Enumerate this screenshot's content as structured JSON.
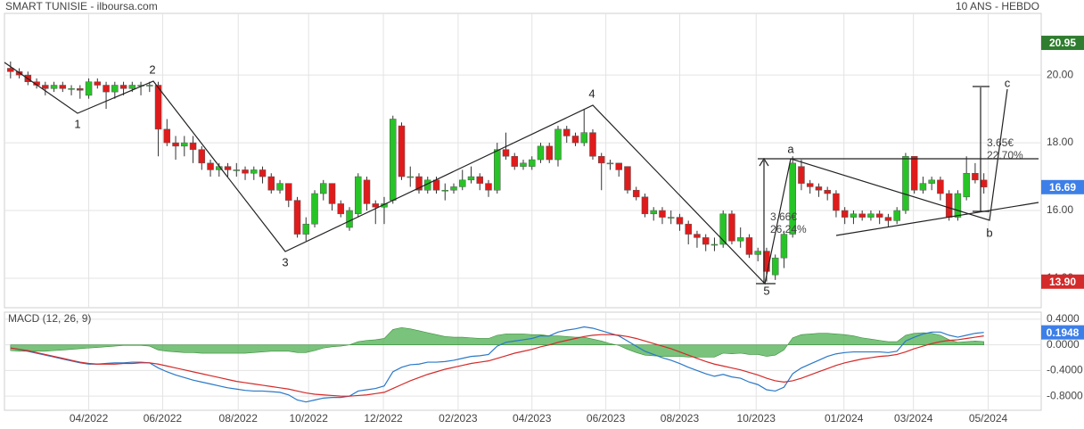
{
  "header": {
    "title": "SMART TUNISIE - ilboursa.com",
    "period": "10 ANS - HEBDO"
  },
  "annotations": {
    "waves": [
      "1",
      "2",
      "3",
      "4",
      "5",
      "a",
      "b",
      "c"
    ],
    "measures": [
      "3.66€",
      "26.24%",
      "3.65€",
      "22.70%"
    ]
  },
  "chart_data": [
    {
      "type": "candlestick",
      "candles": [
        [
          20.2,
          20.4,
          19.9,
          20.1
        ],
        [
          20.1,
          20.2,
          19.9,
          20.0
        ],
        [
          20.0,
          20.1,
          19.7,
          19.8
        ],
        [
          19.8,
          19.9,
          19.6,
          19.7
        ],
        [
          19.7,
          19.8,
          19.4,
          19.6
        ],
        [
          19.6,
          19.8,
          19.5,
          19.7
        ],
        [
          19.7,
          19.8,
          19.5,
          19.6
        ],
        [
          19.6,
          19.7,
          19.4,
          19.6
        ],
        [
          19.6,
          19.7,
          19.3,
          19.55
        ],
        [
          19.4,
          19.9,
          19.3,
          19.8
        ],
        [
          19.8,
          19.9,
          19.6,
          19.7
        ],
        [
          19.7,
          19.8,
          19.0,
          19.5
        ],
        [
          19.5,
          19.8,
          19.3,
          19.7
        ],
        [
          19.7,
          19.8,
          19.4,
          19.6
        ],
        [
          19.6,
          19.8,
          19.5,
          19.7
        ],
        [
          19.7,
          19.8,
          19.4,
          19.7
        ],
        [
          19.7,
          19.8,
          19.5,
          19.7
        ],
        [
          19.7,
          19.8,
          17.6,
          18.4
        ],
        [
          18.4,
          18.7,
          17.9,
          18.0
        ],
        [
          18.0,
          18.2,
          17.5,
          17.9
        ],
        [
          17.9,
          18.2,
          17.6,
          18.0
        ],
        [
          18.0,
          18.2,
          17.4,
          17.8
        ],
        [
          17.8,
          17.9,
          17.2,
          17.4
        ],
        [
          17.4,
          17.5,
          17.0,
          17.2
        ],
        [
          17.2,
          17.4,
          17.0,
          17.3
        ],
        [
          17.3,
          17.4,
          17.0,
          17.2
        ],
        [
          17.2,
          17.4,
          17.0,
          17.2
        ],
        [
          17.2,
          17.3,
          16.9,
          17.1
        ],
        [
          17.1,
          17.3,
          16.9,
          17.2
        ],
        [
          17.2,
          17.3,
          16.8,
          17.0
        ],
        [
          17.0,
          17.1,
          16.5,
          16.6
        ],
        [
          16.6,
          16.9,
          16.5,
          16.8
        ],
        [
          16.8,
          16.8,
          16.1,
          16.3
        ],
        [
          16.3,
          16.4,
          15.2,
          15.3
        ],
        [
          15.3,
          15.8,
          15.1,
          15.6
        ],
        [
          15.6,
          16.6,
          15.5,
          16.5
        ],
        [
          16.5,
          16.9,
          16.3,
          16.8
        ],
        [
          16.8,
          16.8,
          16.0,
          16.2
        ],
        [
          16.2,
          16.3,
          15.8,
          15.9
        ],
        [
          15.5,
          16.1,
          15.4,
          16.0
        ],
        [
          15.9,
          17.1,
          15.8,
          17.0
        ],
        [
          16.9,
          17.0,
          16.0,
          16.2
        ],
        [
          16.2,
          16.3,
          15.6,
          16.1
        ],
        [
          16.1,
          16.4,
          15.6,
          16.2
        ],
        [
          16.3,
          18.8,
          16.2,
          18.7
        ],
        [
          18.5,
          18.6,
          16.9,
          17.0
        ],
        [
          17.0,
          17.3,
          16.7,
          17.0
        ],
        [
          17.0,
          17.1,
          16.5,
          16.6
        ],
        [
          16.6,
          17.0,
          16.5,
          16.9
        ],
        [
          16.9,
          17.0,
          16.5,
          16.6
        ],
        [
          16.6,
          16.8,
          16.3,
          16.6
        ],
        [
          16.6,
          16.8,
          16.5,
          16.7
        ],
        [
          16.7,
          17.2,
          16.6,
          16.9
        ],
        [
          16.9,
          17.3,
          16.8,
          17.0
        ],
        [
          17.0,
          17.1,
          16.6,
          16.8
        ],
        [
          16.8,
          16.9,
          16.4,
          16.6
        ],
        [
          16.6,
          18.0,
          16.5,
          17.8
        ],
        [
          17.8,
          18.3,
          17.5,
          17.6
        ],
        [
          17.6,
          17.7,
          17.2,
          17.3
        ],
        [
          17.3,
          17.5,
          17.2,
          17.4
        ],
        [
          17.3,
          17.6,
          17.2,
          17.5
        ],
        [
          17.5,
          18.0,
          17.4,
          17.9
        ],
        [
          17.9,
          18.0,
          17.4,
          17.5
        ],
        [
          17.5,
          18.5,
          17.3,
          18.4
        ],
        [
          18.4,
          18.5,
          18.0,
          18.2
        ],
        [
          18.2,
          18.3,
          17.9,
          18.0
        ],
        [
          18.0,
          19.0,
          17.9,
          18.3
        ],
        [
          18.3,
          18.4,
          17.5,
          17.6
        ],
        [
          17.6,
          17.7,
          16.6,
          17.4
        ],
        [
          17.4,
          17.5,
          17.2,
          17.4
        ],
        [
          17.4,
          17.4,
          17.0,
          17.2
        ],
        [
          17.3,
          17.3,
          16.5,
          16.6
        ],
        [
          16.6,
          16.7,
          16.3,
          16.4
        ],
        [
          16.4,
          16.5,
          15.8,
          15.9
        ],
        [
          15.9,
          16.1,
          15.7,
          16.0
        ],
        [
          16.0,
          16.1,
          15.6,
          15.8
        ],
        [
          15.8,
          16.0,
          15.6,
          15.8
        ],
        [
          15.8,
          15.9,
          15.4,
          15.6
        ],
        [
          15.6,
          15.7,
          15.0,
          15.3
        ],
        [
          15.3,
          15.4,
          14.9,
          15.2
        ],
        [
          15.2,
          15.3,
          14.8,
          15.0
        ],
        [
          15.0,
          15.2,
          14.8,
          15.0
        ],
        [
          15.0,
          16.0,
          14.9,
          15.9
        ],
        [
          15.9,
          16.0,
          15.0,
          15.1
        ],
        [
          15.1,
          15.5,
          14.9,
          15.2
        ],
        [
          15.2,
          15.3,
          14.6,
          14.7
        ],
        [
          14.7,
          14.9,
          14.5,
          14.8
        ],
        [
          14.8,
          14.9,
          13.9,
          14.2
        ],
        [
          14.1,
          14.7,
          13.95,
          14.6
        ],
        [
          14.6,
          15.4,
          14.3,
          15.3
        ],
        [
          15.3,
          17.6,
          15.2,
          17.4
        ],
        [
          17.3,
          17.5,
          16.6,
          16.8
        ],
        [
          16.8,
          16.9,
          16.5,
          16.7
        ],
        [
          16.7,
          16.8,
          16.4,
          16.6
        ],
        [
          16.6,
          16.7,
          16.3,
          16.5
        ],
        [
          16.5,
          16.6,
          15.8,
          16.0
        ],
        [
          16.0,
          16.1,
          15.6,
          15.8
        ],
        [
          15.8,
          16.0,
          15.6,
          15.9
        ],
        [
          15.9,
          16.0,
          15.7,
          15.8
        ],
        [
          15.8,
          16.0,
          15.7,
          15.9
        ],
        [
          15.9,
          16.0,
          15.6,
          15.8
        ],
        [
          15.8,
          15.9,
          15.5,
          15.7
        ],
        [
          15.7,
          16.1,
          15.6,
          16.0
        ],
        [
          16.0,
          17.7,
          15.9,
          17.6
        ],
        [
          17.6,
          17.6,
          16.5,
          16.6
        ],
        [
          16.6,
          17.0,
          16.5,
          16.8
        ],
        [
          16.8,
          17.0,
          16.6,
          16.9
        ],
        [
          16.9,
          17.0,
          16.3,
          16.5
        ],
        [
          16.5,
          16.6,
          15.7,
          15.8
        ],
        [
          15.8,
          16.6,
          15.7,
          16.5
        ],
        [
          16.4,
          17.6,
          16.3,
          17.1
        ],
        [
          17.1,
          17.4,
          16.8,
          16.9
        ],
        [
          16.9,
          17.1,
          16.5,
          16.69
        ]
      ],
      "up_color": "#27c427",
      "down_color": "#e01b1b",
      "xlim": [
        -0.7,
        118.6
      ],
      "xticks": [
        {
          "value": 9.0,
          "label": "04/2022"
        },
        {
          "value": 17.5,
          "label": "06/2022"
        },
        {
          "value": 26.2,
          "label": "08/2022"
        },
        {
          "value": 34.3,
          "label": "10/2022"
        },
        {
          "value": 42.9,
          "label": "12/2022"
        },
        {
          "value": 51.5,
          "label": "02/2023"
        },
        {
          "value": 60.0,
          "label": "04/2023"
        },
        {
          "value": 68.5,
          "label": "06/2023"
        },
        {
          "value": 77.0,
          "label": "08/2023"
        },
        {
          "value": 85.8,
          "label": "10/2023"
        },
        {
          "value": 95.9,
          "label": "01/2024"
        },
        {
          "value": 103.9,
          "label": "03/2024"
        },
        {
          "value": 112.5,
          "label": "05/2024"
        }
      ],
      "ylim": [
        13.13,
        21.82
      ],
      "yticks": [
        {
          "value": 14,
          "label": "14.00"
        },
        {
          "value": 16,
          "label": "16.00"
        },
        {
          "value": 18,
          "label": "18.00"
        },
        {
          "value": 20,
          "label": "20.00"
        }
      ],
      "markers": [
        {
          "value": 20.95,
          "label": "20.95",
          "color": "#2f7d2f"
        },
        {
          "value": 16.69,
          "label": "16.69",
          "color": "#3d7fe8"
        },
        {
          "value": 13.9,
          "label": "13.90",
          "color": "#d42a2a"
        }
      ],
      "grid": true
    },
    {
      "type": "macd",
      "title": "MACD (12, 26, 9)",
      "series": [
        {
          "name": "MACD",
          "color": "#2a78c8",
          "values": [
            -0.05,
            -0.07,
            -0.1,
            -0.13,
            -0.16,
            -0.19,
            -0.22,
            -0.25,
            -0.28,
            -0.3,
            -0.3,
            -0.29,
            -0.28,
            -0.28,
            -0.27,
            -0.27,
            -0.28,
            -0.36,
            -0.42,
            -0.47,
            -0.51,
            -0.55,
            -0.58,
            -0.61,
            -0.64,
            -0.67,
            -0.69,
            -0.71,
            -0.72,
            -0.72,
            -0.73,
            -0.74,
            -0.78,
            -0.86,
            -0.89,
            -0.86,
            -0.83,
            -0.82,
            -0.82,
            -0.8,
            -0.72,
            -0.7,
            -0.68,
            -0.64,
            -0.42,
            -0.35,
            -0.31,
            -0.3,
            -0.27,
            -0.27,
            -0.26,
            -0.24,
            -0.21,
            -0.18,
            -0.17,
            -0.15,
            -0.02,
            0.04,
            0.06,
            0.08,
            0.1,
            0.14,
            0.14,
            0.2,
            0.23,
            0.25,
            0.28,
            0.26,
            0.22,
            0.18,
            0.14,
            0.06,
            -0.02,
            -0.1,
            -0.15,
            -0.2,
            -0.24,
            -0.29,
            -0.35,
            -0.4,
            -0.45,
            -0.49,
            -0.46,
            -0.5,
            -0.52,
            -0.58,
            -0.62,
            -0.7,
            -0.72,
            -0.66,
            -0.45,
            -0.36,
            -0.3,
            -0.24,
            -0.18,
            -0.14,
            -0.12,
            -0.11,
            -0.11,
            -0.11,
            -0.11,
            -0.12,
            -0.1,
            0.06,
            0.12,
            0.17,
            0.2,
            0.2,
            0.15,
            0.12,
            0.15,
            0.18,
            0.1948
          ]
        },
        {
          "name": "Signal",
          "color": "#d42a2a",
          "values": [
            -0.05,
            -0.07,
            -0.09,
            -0.12,
            -0.15,
            -0.18,
            -0.21,
            -0.24,
            -0.27,
            -0.29,
            -0.3,
            -0.3,
            -0.3,
            -0.29,
            -0.29,
            -0.28,
            -0.28,
            -0.3,
            -0.33,
            -0.36,
            -0.39,
            -0.42,
            -0.45,
            -0.48,
            -0.51,
            -0.54,
            -0.57,
            -0.59,
            -0.61,
            -0.63,
            -0.65,
            -0.67,
            -0.69,
            -0.72,
            -0.75,
            -0.77,
            -0.78,
            -0.79,
            -0.8,
            -0.8,
            -0.79,
            -0.78,
            -0.76,
            -0.74,
            -0.68,
            -0.62,
            -0.56,
            -0.51,
            -0.46,
            -0.42,
            -0.38,
            -0.35,
            -0.32,
            -0.29,
            -0.27,
            -0.25,
            -0.21,
            -0.17,
            -0.13,
            -0.1,
            -0.07,
            -0.03,
            0.0,
            0.04,
            0.07,
            0.1,
            0.13,
            0.15,
            0.16,
            0.16,
            0.15,
            0.13,
            0.1,
            0.06,
            0.02,
            -0.02,
            -0.06,
            -0.11,
            -0.16,
            -0.21,
            -0.26,
            -0.3,
            -0.33,
            -0.36,
            -0.39,
            -0.43,
            -0.47,
            -0.52,
            -0.56,
            -0.58,
            -0.56,
            -0.52,
            -0.47,
            -0.42,
            -0.37,
            -0.32,
            -0.28,
            -0.25,
            -0.22,
            -0.2,
            -0.18,
            -0.17,
            -0.15,
            -0.11,
            -0.06,
            -0.02,
            0.02,
            0.05,
            0.07,
            0.08,
            0.1,
            0.12,
            0.14
          ]
        },
        {
          "name": "Histogram",
          "color": "#4caf50",
          "values": [
            -0.09,
            -0.1,
            -0.1,
            -0.1,
            -0.1,
            -0.09,
            -0.08,
            -0.07,
            -0.06,
            -0.05,
            -0.04,
            -0.03,
            -0.02,
            -0.01,
            -0.01,
            -0.01,
            -0.02,
            -0.08,
            -0.1,
            -0.11,
            -0.12,
            -0.12,
            -0.13,
            -0.13,
            -0.13,
            -0.13,
            -0.13,
            -0.13,
            -0.12,
            -0.11,
            -0.1,
            -0.1,
            -0.1,
            -0.12,
            -0.12,
            -0.09,
            -0.05,
            -0.03,
            -0.02,
            0.0,
            0.05,
            0.07,
            0.08,
            0.1,
            0.24,
            0.27,
            0.25,
            0.22,
            0.19,
            0.16,
            0.13,
            0.12,
            0.12,
            0.11,
            0.1,
            0.1,
            0.15,
            0.17,
            0.17,
            0.17,
            0.16,
            0.16,
            0.14,
            0.14,
            0.13,
            0.12,
            0.12,
            0.09,
            0.06,
            0.02,
            -0.01,
            -0.07,
            -0.12,
            -0.16,
            -0.17,
            -0.18,
            -0.18,
            -0.18,
            -0.19,
            -0.19,
            -0.19,
            -0.19,
            -0.13,
            -0.14,
            -0.13,
            -0.15,
            -0.15,
            -0.18,
            -0.16,
            -0.08,
            0.11,
            0.16,
            0.17,
            0.18,
            0.18,
            0.17,
            0.16,
            0.14,
            0.11,
            0.09,
            0.07,
            0.05,
            0.05,
            0.15,
            0.18,
            0.19,
            0.18,
            0.15,
            0.08,
            0.04,
            0.05,
            0.06,
            0.05
          ]
        }
      ],
      "ylim": [
        -1.02,
        0.51
      ],
      "yticks": [
        {
          "value": -0.8,
          "label": "-0.8000"
        },
        {
          "value": -0.4,
          "label": "-0.4000"
        },
        {
          "value": 0,
          "label": "0.0000"
        },
        {
          "value": 0.4,
          "label": "0.4000"
        }
      ],
      "markers": [
        {
          "value": 0.1948,
          "label": "0.1948",
          "color": "#3d7fe8"
        }
      ]
    }
  ]
}
